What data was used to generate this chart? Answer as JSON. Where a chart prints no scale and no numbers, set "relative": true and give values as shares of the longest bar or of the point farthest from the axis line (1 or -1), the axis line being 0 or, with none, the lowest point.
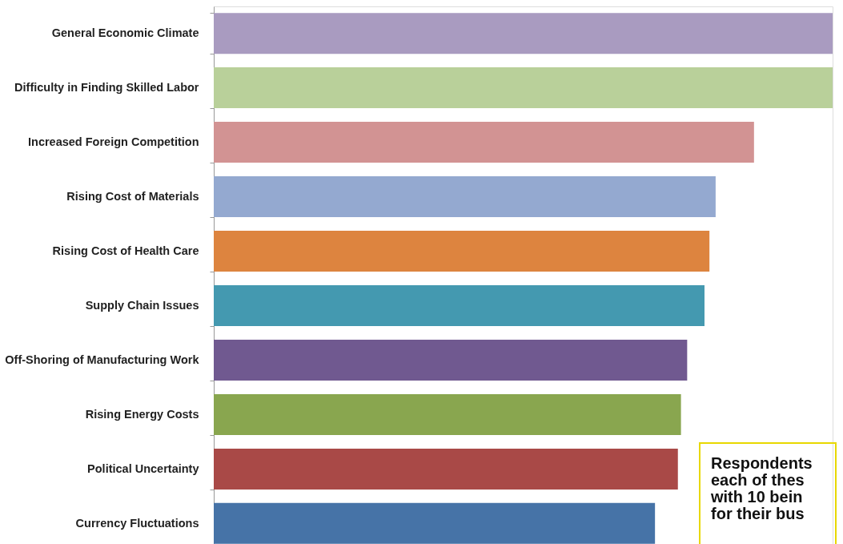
{
  "chart_data": {
    "type": "bar",
    "orientation": "horizontal",
    "relative": true,
    "categories": [
      "General Economic Climate",
      "Difficulty in Finding Skilled Labor",
      "Increased Foreign Competition",
      "Rising Cost of Materials",
      "Rising Cost of Health Care",
      "Supply Chain Issues",
      "Off-Shoring of Manufacturing Work",
      "Rising Energy Costs",
      "Political Uncertainty",
      "Currency Fluctuations"
    ],
    "values": [
      1,
      1,
      0.873,
      0.811,
      0.801,
      0.793,
      0.765,
      0.755,
      0.75,
      0.713
    ],
    "colors": [
      "#a99bc0",
      "#b9d09a",
      "#d29393",
      "#94a9d0",
      "#dd843f",
      "#4499b0",
      "#705990",
      "#89a64f",
      "#a94947",
      "#4673a7"
    ],
    "annotations": [
      "Respondents\neach of thes\nwith 10 bein\nfor their bus"
    ],
    "legend": false
  }
}
